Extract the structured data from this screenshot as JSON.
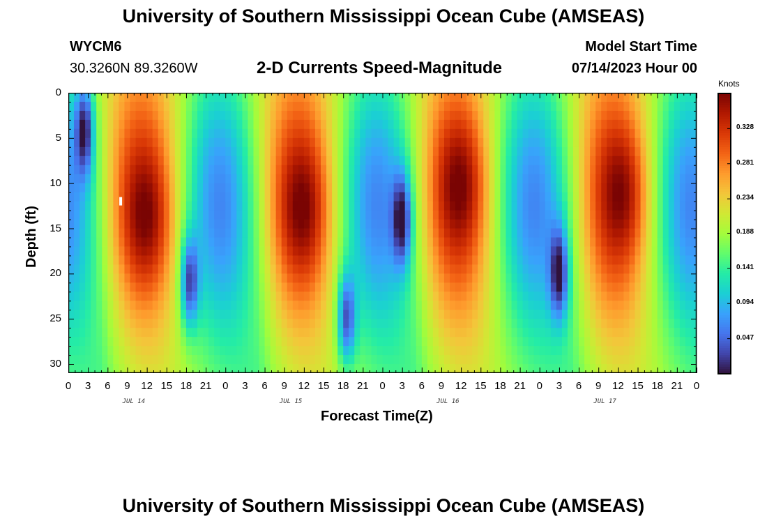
{
  "page": {
    "title_top": "University of Southern Mississippi Ocean Cube (AMSEAS)",
    "title_bottom": "University of Southern Mississippi Ocean Cube (AMSEAS)",
    "station_id": "WYCM6",
    "station_coords": "30.3260N  89.3260W",
    "plot_title": "2-D Currents Speed-Magnitude",
    "model_label": "Model Start Time",
    "model_time": "07/14/2023 Hour 00"
  },
  "chart_data": {
    "type": "heatmap",
    "title": "2-D Currents Speed-Magnitude",
    "xlabel": "Forecast Time(Z)",
    "ylabel": "Depth (ft)",
    "colorbar_label": "Knots",
    "x_tick_labels": [
      "0",
      "3",
      "6",
      "9",
      "12",
      "15",
      "18",
      "21",
      "0",
      "3",
      "6",
      "9",
      "12",
      "15",
      "18",
      "21",
      "0",
      "3",
      "6",
      "9",
      "12",
      "15",
      "18",
      "21",
      "0",
      "3",
      "6",
      "9",
      "12",
      "15",
      "18",
      "21",
      "0"
    ],
    "x_range_hours": [
      0,
      96
    ],
    "date_labels": [
      {
        "label": "JUL 14",
        "hour": 10
      },
      {
        "label": "JUL 15",
        "hour": 34
      },
      {
        "label": "JUL 16",
        "hour": 58
      },
      {
        "label": "JUL 17",
        "hour": 82
      }
    ],
    "y_ticks": [
      0,
      5,
      10,
      15,
      20,
      25,
      30
    ],
    "y_range_ft": [
      0,
      31
    ],
    "colorbar_ticks": [
      "0.328",
      "0.281",
      "0.234",
      "0.188",
      "0.141",
      "0.094",
      "0.047"
    ],
    "colorbar_range": [
      0,
      0.375
    ],
    "colormap": [
      "#30123b",
      "#4145ab",
      "#4675ed",
      "#39a2fc",
      "#1bcfd4",
      "#24eca6",
      "#61fc6c",
      "#a4fc3b",
      "#d1e834",
      "#f3c63a",
      "#fe9b2d",
      "#f36315",
      "#d93806",
      "#b11901",
      "#7a0403"
    ],
    "annotation_marker": {
      "hour": 8,
      "depth_ft": 12
    },
    "surface_maxima": [
      {
        "hour": 12,
        "depth_ft": 14,
        "value": 0.37
      },
      {
        "hour": 36,
        "depth_ft": 13,
        "value": 0.36
      },
      {
        "hour": 60,
        "depth_ft": 10,
        "value": 0.34
      },
      {
        "hour": 85,
        "depth_ft": 11,
        "value": 0.33
      }
    ],
    "surface_minima": [
      {
        "hour": 2.5,
        "depth_ft": 4,
        "value": 0.03
      },
      {
        "hour": 18.5,
        "depth_ft": 21,
        "value": 0.02
      },
      {
        "hour": 42.5,
        "depth_ft": 25,
        "value": 0.02
      },
      {
        "hour": 51,
        "depth_ft": 14,
        "value": 0.02
      },
      {
        "hour": 75,
        "depth_ft": 20,
        "value": 0.02
      }
    ]
  }
}
